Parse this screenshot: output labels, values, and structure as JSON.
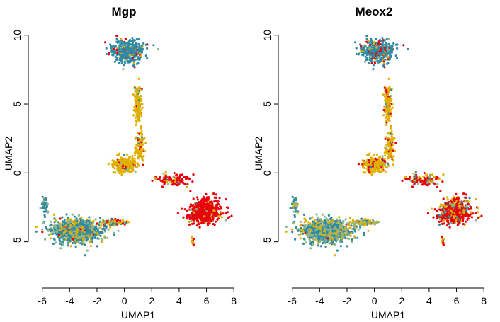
{
  "chart_data": [
    {
      "type": "scatter",
      "title": "Mgp",
      "xlabel": "UMAP1",
      "ylabel": "UMAP2",
      "xlim": [
        -6.5,
        8.3
      ],
      "ylim": [
        -8,
        10.5
      ],
      "xticks": [
        -6,
        -4,
        -2,
        0,
        2,
        4,
        6,
        8
      ],
      "yticks": [
        -5,
        0,
        5,
        10
      ],
      "grid": false,
      "colors": [
        "#2E8BA6",
        "#8FB58A",
        "#E0B000",
        "#E8000B"
      ],
      "clusters": [
        {
          "name": "top",
          "center": [
            0.3,
            8.8
          ],
          "spread": [
            1.1,
            0.7
          ],
          "n": 420,
          "weights": [
            0.78,
            0.05,
            0.09,
            0.08
          ]
        },
        {
          "name": "stem-upper",
          "center": [
            1.0,
            5.0
          ],
          "spread": [
            0.25,
            1.3
          ],
          "n": 140,
          "weights": [
            0.05,
            0.02,
            0.85,
            0.08
          ]
        },
        {
          "name": "stem-lower",
          "center": [
            1.1,
            1.8
          ],
          "spread": [
            0.3,
            1.0
          ],
          "n": 100,
          "weights": [
            0.05,
            0.02,
            0.85,
            0.08
          ]
        },
        {
          "name": "middle",
          "center": [
            0.0,
            0.6
          ],
          "spread": [
            0.8,
            0.5
          ],
          "n": 260,
          "weights": [
            0.03,
            0.03,
            0.86,
            0.08
          ]
        },
        {
          "name": "bridge-right",
          "center": [
            3.5,
            -0.5
          ],
          "spread": [
            1.1,
            0.4
          ],
          "n": 110,
          "weights": [
            0.02,
            0.02,
            0.16,
            0.8
          ]
        },
        {
          "name": "right",
          "center": [
            5.9,
            -2.8
          ],
          "spread": [
            1.0,
            0.8
          ],
          "n": 620,
          "weights": [
            0.02,
            0.02,
            0.08,
            0.88
          ]
        },
        {
          "name": "left",
          "center": [
            -3.5,
            -4.2
          ],
          "spread": [
            1.6,
            0.75
          ],
          "n": 1000,
          "weights": [
            0.56,
            0.22,
            0.2,
            0.02
          ]
        },
        {
          "name": "left-tail",
          "center": [
            -0.8,
            -3.6
          ],
          "spread": [
            0.9,
            0.2
          ],
          "n": 110,
          "weights": [
            0.15,
            0.1,
            0.55,
            0.2
          ]
        },
        {
          "name": "left-arm",
          "center": [
            -5.8,
            -2.2
          ],
          "spread": [
            0.2,
            0.6
          ],
          "n": 45,
          "weights": [
            0.7,
            0.2,
            0.1,
            0.0
          ]
        },
        {
          "name": "small",
          "center": [
            5.0,
            -5.0
          ],
          "spread": [
            0.1,
            0.25
          ],
          "n": 12,
          "weights": [
            0.0,
            0.0,
            0.4,
            0.6
          ]
        }
      ]
    },
    {
      "type": "scatter",
      "title": "Meox2",
      "xlabel": "UMAP1",
      "ylabel": "UMAP2",
      "xlim": [
        -6.5,
        8.3
      ],
      "ylim": [
        -8,
        10.5
      ],
      "xticks": [
        -6,
        -4,
        -2,
        0,
        2,
        4,
        6,
        8
      ],
      "yticks": [
        -5,
        0,
        5,
        10
      ],
      "grid": false,
      "colors": [
        "#2E8BA6",
        "#8FB58A",
        "#E0B000",
        "#E8000B"
      ],
      "clusters": [
        {
          "name": "top",
          "center": [
            0.3,
            8.8
          ],
          "spread": [
            1.1,
            0.7
          ],
          "n": 420,
          "weights": [
            0.72,
            0.06,
            0.1,
            0.12
          ]
        },
        {
          "name": "stem-upper",
          "center": [
            1.0,
            5.0
          ],
          "spread": [
            0.25,
            1.3
          ],
          "n": 140,
          "weights": [
            0.05,
            0.02,
            0.8,
            0.13
          ]
        },
        {
          "name": "stem-lower",
          "center": [
            1.1,
            1.8
          ],
          "spread": [
            0.3,
            1.0
          ],
          "n": 100,
          "weights": [
            0.03,
            0.02,
            0.8,
            0.15
          ]
        },
        {
          "name": "middle",
          "center": [
            0.0,
            0.6
          ],
          "spread": [
            0.8,
            0.5
          ],
          "n": 260,
          "weights": [
            0.02,
            0.03,
            0.78,
            0.17
          ]
        },
        {
          "name": "bridge-right",
          "center": [
            3.5,
            -0.5
          ],
          "spread": [
            1.1,
            0.4
          ],
          "n": 110,
          "weights": [
            0.05,
            0.05,
            0.4,
            0.5
          ]
        },
        {
          "name": "right",
          "center": [
            5.9,
            -2.8
          ],
          "spread": [
            1.0,
            0.8
          ],
          "n": 620,
          "weights": [
            0.12,
            0.08,
            0.2,
            0.6
          ]
        },
        {
          "name": "left",
          "center": [
            -3.5,
            -4.2
          ],
          "spread": [
            1.6,
            0.75
          ],
          "n": 1000,
          "weights": [
            0.4,
            0.35,
            0.23,
            0.02
          ]
        },
        {
          "name": "left-tail",
          "center": [
            -0.8,
            -3.6
          ],
          "spread": [
            0.9,
            0.2
          ],
          "n": 110,
          "weights": [
            0.2,
            0.35,
            0.4,
            0.05
          ]
        },
        {
          "name": "left-arm",
          "center": [
            -5.8,
            -2.2
          ],
          "spread": [
            0.2,
            0.6
          ],
          "n": 45,
          "weights": [
            0.75,
            0.2,
            0.05,
            0.0
          ]
        },
        {
          "name": "small",
          "center": [
            5.0,
            -5.0
          ],
          "spread": [
            0.1,
            0.25
          ],
          "n": 12,
          "weights": [
            0.0,
            0.0,
            0.5,
            0.5
          ]
        }
      ]
    }
  ]
}
